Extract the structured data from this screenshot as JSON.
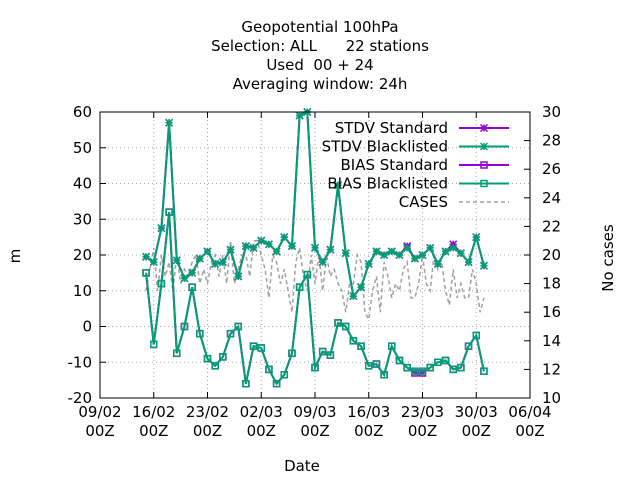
{
  "chart_data": {
    "type": "line",
    "title_lines": [
      "Geopotential 100hPa",
      "Selection: ALL      22 stations",
      "Used  00 + 24",
      "Averaging window: 24h"
    ],
    "xlabel": "Date",
    "ylabel": "m",
    "y2label": "No cases",
    "xlim": [
      "09/02",
      "06/04"
    ],
    "ylim": [
      -20,
      60
    ],
    "y2lim": [
      10,
      30
    ],
    "x_ticks": [
      {
        "day": 0,
        "line1": "09/02",
        "line2": "00Z"
      },
      {
        "day": 7,
        "line1": "16/02",
        "line2": "00Z"
      },
      {
        "day": 14,
        "line1": "23/02",
        "line2": "00Z"
      },
      {
        "day": 21,
        "line1": "02/03",
        "line2": "00Z"
      },
      {
        "day": 28,
        "line1": "09/03",
        "line2": "00Z"
      },
      {
        "day": 35,
        "line1": "16/03",
        "line2": "00Z"
      },
      {
        "day": 42,
        "line1": "23/03",
        "line2": "00Z"
      },
      {
        "day": 49,
        "line1": "30/03",
        "line2": "00Z"
      },
      {
        "day": 56,
        "line1": "06/04",
        "line2": "00Z"
      }
    ],
    "y_ticks": [
      -20,
      -10,
      0,
      10,
      20,
      30,
      40,
      50,
      60
    ],
    "y2_ticks": [
      10,
      12,
      14,
      16,
      18,
      20,
      22,
      24,
      26,
      28,
      30
    ],
    "grid": true,
    "legend_position": "top-right",
    "x": [
      6,
      7,
      8,
      9,
      10,
      11,
      12,
      13,
      14,
      15,
      16,
      17,
      18,
      19,
      20,
      21,
      22,
      23,
      24,
      25,
      26,
      27,
      28,
      29,
      30,
      31,
      32,
      33,
      34,
      35,
      36,
      37,
      38,
      39,
      40,
      41,
      42,
      43,
      44,
      45,
      46,
      47,
      48,
      49,
      50
    ],
    "series": [
      {
        "name": "STDV Standard",
        "axis": "y",
        "color": "#9400d3",
        "marker": "star",
        "values": [
          19.5,
          18,
          27.5,
          57,
          18.5,
          13.5,
          15,
          19,
          21,
          17.5,
          18,
          21.5,
          14,
          22.5,
          22,
          24,
          23,
          21,
          25,
          22.5,
          59,
          60,
          22,
          18,
          21.5,
          39.5,
          20.5,
          8.5,
          11,
          17.5,
          21,
          20,
          21,
          20,
          22.5,
          19,
          20,
          22,
          17.5,
          21,
          23,
          20.5,
          18,
          25,
          17
        ]
      },
      {
        "name": "STDV Blacklisted",
        "axis": "y",
        "color": "#009e73",
        "marker": "star",
        "values": [
          19.5,
          18,
          27.5,
          57,
          18.5,
          13.5,
          15,
          19,
          21,
          17.5,
          18,
          21.5,
          14,
          22.5,
          22,
          24,
          23,
          21,
          25,
          22.5,
          59,
          60,
          22,
          18,
          21.5,
          39.5,
          20.5,
          8.5,
          11,
          17.5,
          21,
          20,
          21,
          20,
          22,
          19,
          20,
          22,
          17.5,
          21,
          22,
          20.5,
          18,
          25,
          17
        ]
      },
      {
        "name": "BIAS Standard",
        "axis": "y",
        "color": "#9400d3",
        "marker": "square",
        "values": [
          15,
          -5,
          12,
          32,
          -7.5,
          0,
          11,
          -2,
          -9,
          -11,
          -8.5,
          -2,
          0,
          -16,
          -5.5,
          -6,
          -12,
          -16,
          -13.5,
          -7.5,
          11,
          14.5,
          -11.5,
          -7,
          -8,
          1,
          0,
          -4,
          -5.5,
          -11,
          -10.5,
          -13.5,
          -5.5,
          -9.5,
          -11.5,
          -13,
          -13,
          -11.5,
          -10,
          -9.5,
          -12,
          -11.5,
          -5.5,
          -2.5,
          -12.5
        ]
      },
      {
        "name": "BIAS Blacklisted",
        "axis": "y",
        "color": "#009e73",
        "marker": "square",
        "values": [
          15,
          -5,
          12,
          32,
          -7.5,
          0,
          11,
          -2,
          -9,
          -11,
          -8.5,
          -2,
          0,
          -16,
          -5.5,
          -6,
          -12,
          -16,
          -13.5,
          -7.5,
          11,
          14.5,
          -11.5,
          -7,
          -8,
          1,
          0,
          -4,
          -5.5,
          -11,
          -10.5,
          -13.5,
          -5.5,
          -9.5,
          -11.5,
          -12.5,
          -12.5,
          -11.5,
          -10,
          -9.5,
          -12,
          -11.5,
          -5.5,
          -2.5,
          -12.5
        ]
      },
      {
        "name": "CASES",
        "axis": "y2",
        "color": "#a0a0a0",
        "marker": "none",
        "dash": true,
        "x": [
          6,
          6.5,
          7,
          7.5,
          8,
          8.5,
          9,
          9.5,
          10,
          10.5,
          11,
          11.5,
          12,
          12.5,
          13,
          13.5,
          14,
          14.5,
          15,
          15.5,
          16,
          16.5,
          17,
          17.5,
          18,
          18.5,
          19,
          19.5,
          20,
          20.5,
          21,
          21.5,
          22,
          22.5,
          23,
          23.5,
          24,
          24.5,
          25,
          25.5,
          26,
          26.5,
          27,
          27.5,
          28,
          28.5,
          29,
          29.5,
          30,
          30.5,
          31,
          31.5,
          32,
          32.5,
          33,
          33.5,
          34,
          34.5,
          35,
          35.5,
          36,
          36.5,
          37,
          37.5,
          38,
          38.5,
          39,
          39.5,
          40,
          40.5,
          41,
          41.5,
          42,
          42.5,
          43,
          43.5,
          44,
          44.5,
          45,
          45.5,
          46,
          46.5,
          47,
          47.5,
          48,
          48.5,
          49,
          49.5,
          50
        ],
        "values": [
          17.5,
          19,
          20.5,
          17.5,
          20,
          18.5,
          19.5,
          17.5,
          20,
          18,
          19,
          18.5,
          19.5,
          20,
          18,
          19,
          18,
          19.5,
          20,
          18.5,
          20,
          18,
          21,
          18,
          19,
          20,
          20,
          18.5,
          21,
          21,
          20,
          19,
          17,
          20,
          19.5,
          18,
          19,
          17.5,
          16,
          19.5,
          20.5,
          18.5,
          17.5,
          20,
          18,
          20,
          17.5,
          20,
          18.5,
          19,
          18,
          17.5,
          16,
          18,
          18,
          20,
          19.5,
          16,
          15.5,
          17.5,
          18.5,
          16,
          19.5,
          18.5,
          17,
          18,
          17.5,
          19,
          19.5,
          17,
          17,
          18,
          20,
          18,
          17.5,
          20,
          19,
          19.5,
          17.5,
          16.5,
          19,
          17,
          18,
          17,
          17,
          19,
          18,
          16,
          17
        ]
      }
    ]
  }
}
